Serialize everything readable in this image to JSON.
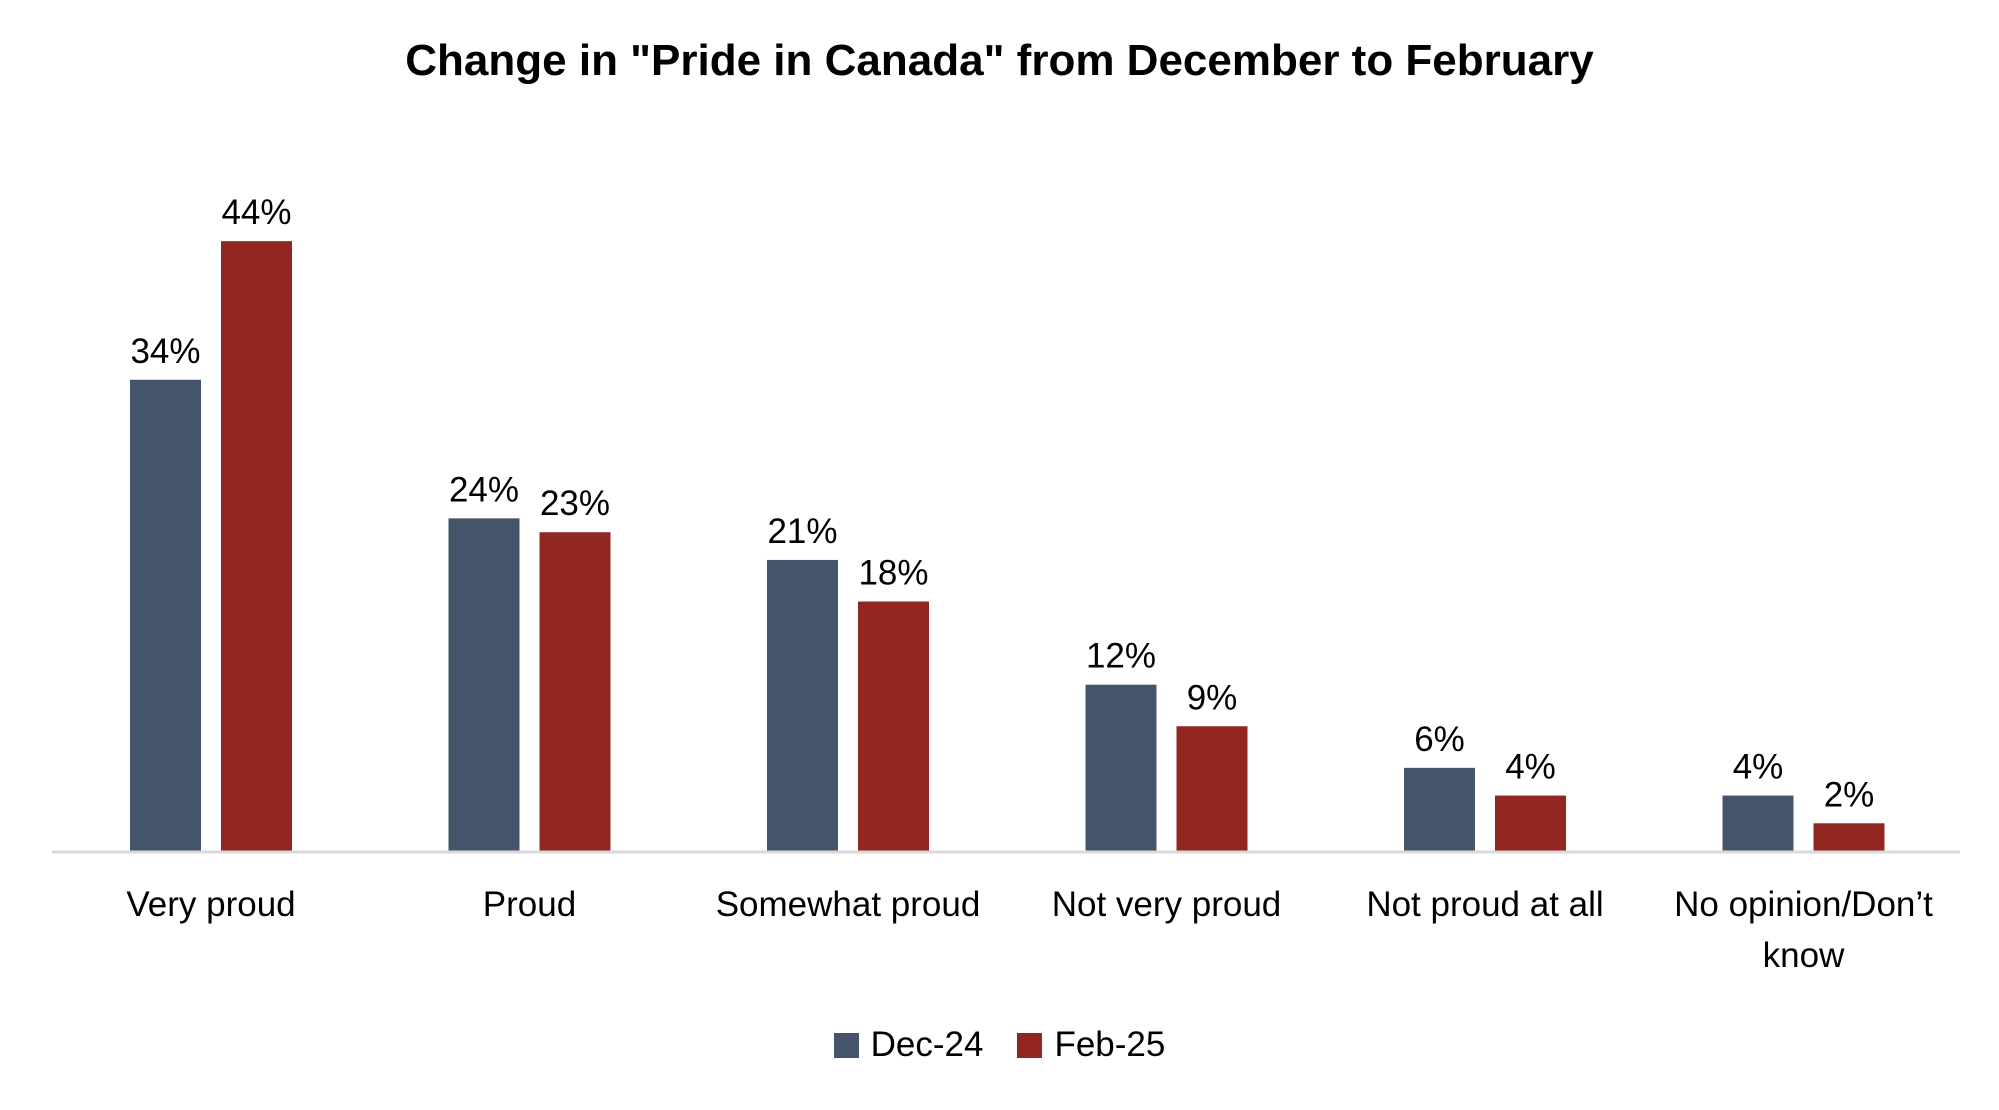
{
  "chart_data": {
    "type": "bar",
    "title": "Change in \"Pride in Canada\" from December to February",
    "categories": [
      [
        "Very proud"
      ],
      [
        "Proud"
      ],
      [
        "Somewhat proud"
      ],
      [
        "Not very proud"
      ],
      [
        "Not proud at all"
      ],
      [
        "No opinion/Don’t",
        "know"
      ]
    ],
    "series": [
      {
        "name": "Dec-24",
        "color": "#44546a",
        "values": [
          34,
          24,
          21,
          12,
          6,
          4
        ],
        "labels": [
          "34%",
          "24%",
          "21%",
          "12%",
          "6%",
          "4%"
        ]
      },
      {
        "name": "Feb-25",
        "color": "#922722",
        "values": [
          44,
          23,
          18,
          9,
          4,
          2
        ],
        "labels": [
          "44%",
          "23%",
          "18%",
          "9%",
          "4%",
          "2%"
        ]
      }
    ],
    "unit": "%",
    "ylim": [
      0,
      44
    ],
    "grid": false,
    "legend_position": "bottom-center",
    "axis_color": "#d9d9d9"
  }
}
